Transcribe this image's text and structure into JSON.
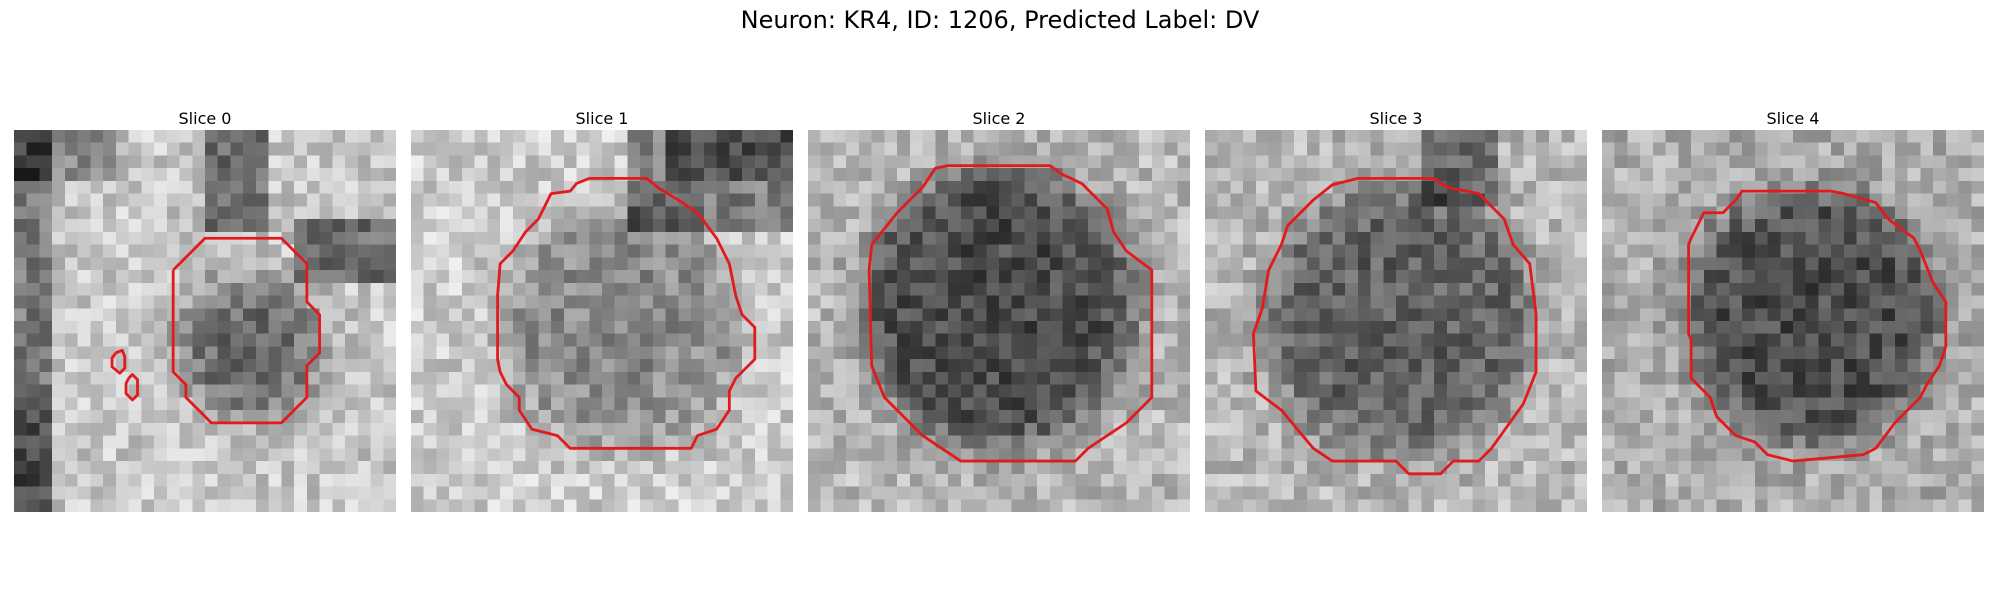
{
  "figure": {
    "title": "Neuron: KR4, ID: 1206, Predicted Label: DV"
  },
  "panels": [
    {
      "title": "Slice 0"
    },
    {
      "title": "Slice 1"
    },
    {
      "title": "Slice 2"
    },
    {
      "title": "Slice 3"
    },
    {
      "title": "Slice 4"
    }
  ],
  "colors": {
    "contour": "#e31a1c"
  }
}
